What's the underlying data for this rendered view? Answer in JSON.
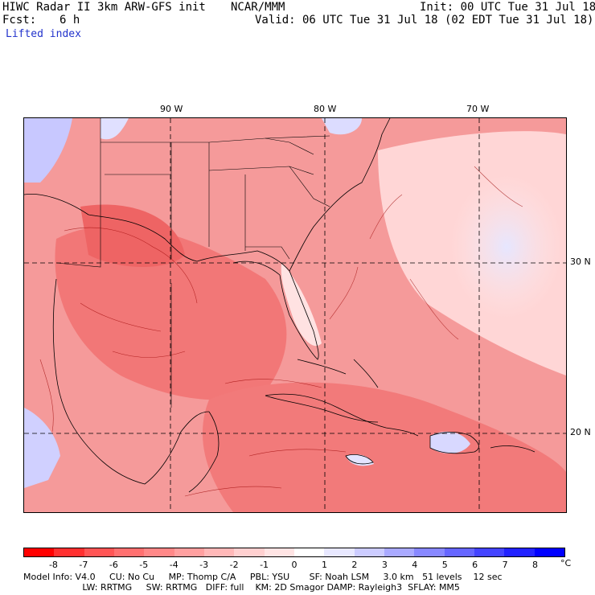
{
  "header": {
    "title_left": "HIWC Radar II 3km ARW-GFS init",
    "org": "NCAR/MMM",
    "init": "Init: 00 UTC Tue 31 Jul 18",
    "fcst_label": "Fcst:",
    "fcst_value": "6 h",
    "valid": "Valid: 06 UTC Tue 31 Jul 18 (02 EDT Tue 31 Jul 18)",
    "field_name": "Lifted index"
  },
  "map": {
    "lon_labels": [
      "90 W",
      "80 W",
      "70 W"
    ],
    "lat_labels": [
      "30 N",
      "20 N"
    ]
  },
  "colorbar": {
    "colors": [
      "#ff0000",
      "#ff3030",
      "#ff5555",
      "#ff7070",
      "#ff8888",
      "#ffa0a0",
      "#ffb8b8",
      "#ffd0d0",
      "#ffe4e4",
      "#ffffff",
      "#e8e8ff",
      "#ccccff",
      "#aaaaff",
      "#8888ff",
      "#6666ff",
      "#4444ff",
      "#2222ff",
      "#0000ff"
    ],
    "ticks": [
      "-8",
      "-7",
      "-6",
      "-5",
      "-4",
      "-3",
      "-2",
      "-1",
      "0",
      "1",
      "2",
      "3",
      "4",
      "5",
      "6",
      "7",
      "8"
    ],
    "unit": "°C"
  },
  "footer": {
    "line1": "Model Info: V4.0     CU: No Cu     MP: Thomp C/A     PBL: YSU       SF: Noah LSM     3.0 km   51 levels    12 sec",
    "line2": "                     LW: RRTMG     SW: RRTMG   DIFF: full    KM: 2D Smagor DAMP: Rayleigh3  SFLAY: MM5"
  }
}
